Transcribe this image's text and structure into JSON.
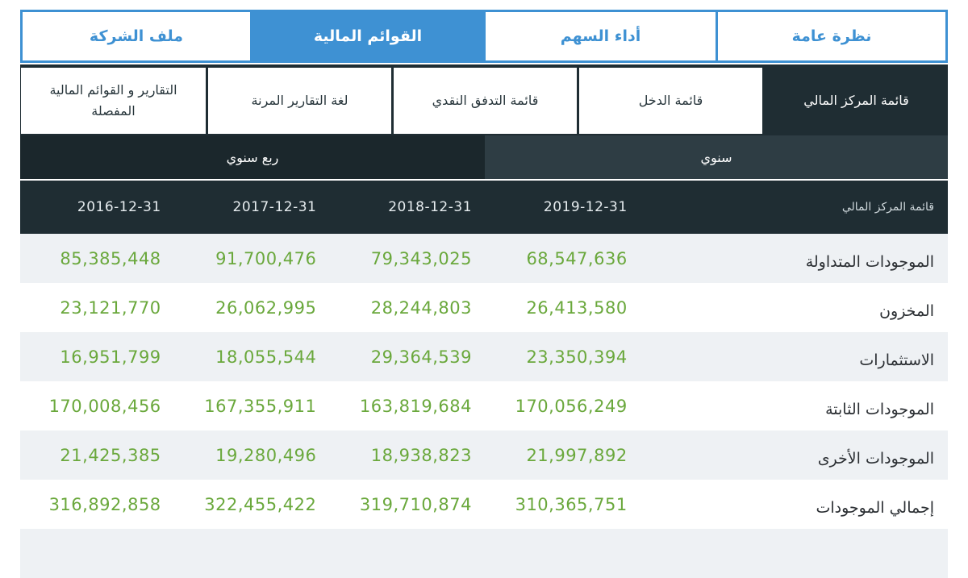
{
  "top_tabs": [
    {
      "label": "نظرة عامة",
      "active": false
    },
    {
      "label": "أداء السهم",
      "active": false
    },
    {
      "label": "القوائم المالية",
      "active": true
    },
    {
      "label": "ملف الشركة",
      "active": false
    }
  ],
  "sub_tabs": [
    {
      "label": "قائمة المركز المالي",
      "active": true
    },
    {
      "label": "قائمة الدخل",
      "active": false
    },
    {
      "label": "قائمة التدفق النقدي",
      "active": false
    },
    {
      "label": "لغة التقارير المرنة",
      "active": false
    },
    {
      "label": "التقارير و القوائم المالية المفصلة",
      "active": false
    }
  ],
  "period": {
    "annual": "سنوي",
    "quarterly": "ربع سنوي"
  },
  "table": {
    "header_label": "قائمة المركز المالي",
    "columns": [
      "2019-12-31",
      "2018-12-31",
      "2017-12-31",
      "2016-12-31"
    ],
    "rows": [
      {
        "label": "الموجودات المتداولة",
        "values": [
          "68,547,636",
          "79,343,025",
          "91,700,476",
          "85,385,448"
        ]
      },
      {
        "label": "المخزون",
        "values": [
          "26,413,580",
          "28,244,803",
          "26,062,995",
          "23,121,770"
        ]
      },
      {
        "label": "الاستثمارات",
        "values": [
          "23,350,394",
          "29,364,539",
          "18,055,544",
          "16,951,799"
        ]
      },
      {
        "label": "الموجودات الثابتة",
        "values": [
          "170,056,249",
          "163,819,684",
          "167,355,911",
          "170,008,456"
        ]
      },
      {
        "label": "الموجودات الأخرى",
        "values": [
          "21,997,892",
          "18,938,823",
          "19,280,496",
          "21,425,385"
        ]
      },
      {
        "label": "إجمالي الموجودات",
        "values": [
          "310,365,751",
          "319,710,874",
          "322,455,422",
          "316,892,858"
        ]
      }
    ]
  },
  "colors": {
    "accent": "#3e91d3",
    "dark": "#1f2d33",
    "value_green": "#6aa83c"
  }
}
